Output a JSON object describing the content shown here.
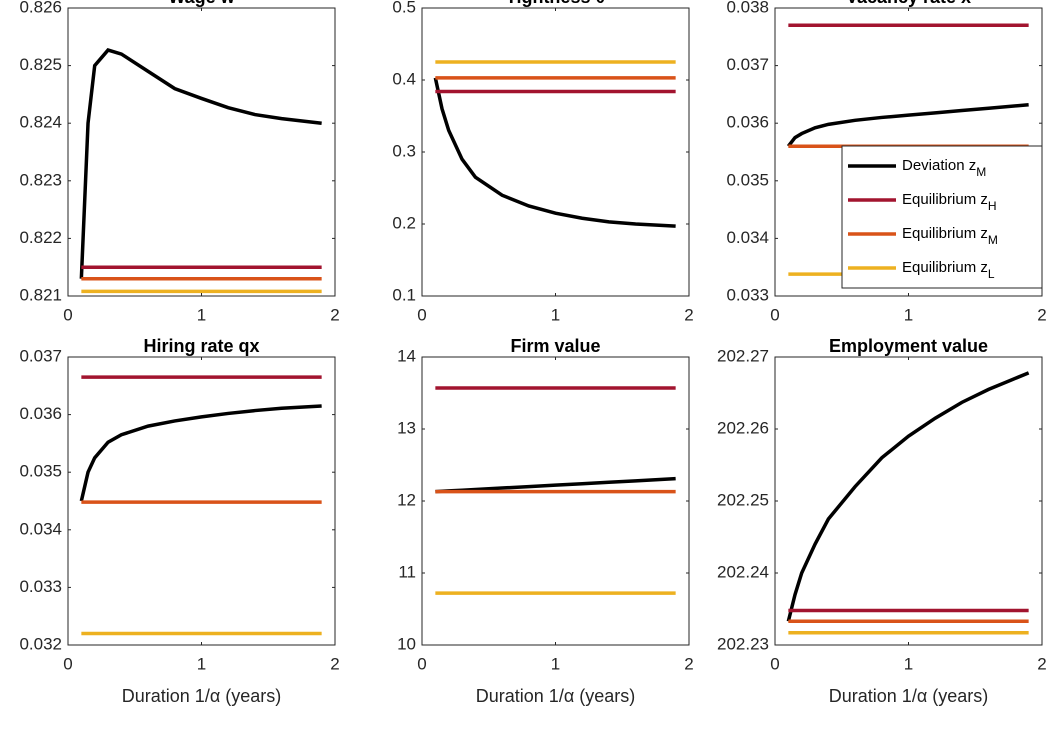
{
  "chart_data": [
    {
      "type": "line",
      "title": "Wage w",
      "x": [
        0.1,
        0.15,
        0.2,
        0.3,
        0.4,
        0.6,
        0.8,
        1.0,
        1.2,
        1.4,
        1.6,
        1.9
      ],
      "xlim": [
        0,
        2
      ],
      "xticks": [
        0,
        1,
        2
      ],
      "ylim": [
        0.821,
        0.826
      ],
      "yticks": [
        0.821,
        0.822,
        0.823,
        0.824,
        0.825,
        0.826
      ],
      "series": [
        {
          "name": "Deviation z_M",
          "color": "#000000",
          "values": [
            0.8213,
            0.824,
            0.825,
            0.82527,
            0.8252,
            0.8249,
            0.8246,
            0.82443,
            0.82427,
            0.82415,
            0.82408,
            0.824
          ]
        },
        {
          "name": "Equilibrium z_H",
          "color": "#a2142f",
          "values": [
            0.8215,
            0.8215,
            0.8215,
            0.8215,
            0.8215,
            0.8215,
            0.8215,
            0.8215,
            0.8215,
            0.8215,
            0.8215,
            0.8215
          ]
        },
        {
          "name": "Equilibrium z_M",
          "color": "#d95319",
          "values": [
            0.8213,
            0.8213,
            0.8213,
            0.8213,
            0.8213,
            0.8213,
            0.8213,
            0.8213,
            0.8213,
            0.8213,
            0.8213,
            0.8213
          ]
        },
        {
          "name": "Equilibrium z_L",
          "color": "#edb120",
          "values": [
            0.82108,
            0.82108,
            0.82108,
            0.82108,
            0.82108,
            0.82108,
            0.82108,
            0.82108,
            0.82108,
            0.82108,
            0.82108,
            0.82108
          ]
        }
      ]
    },
    {
      "type": "line",
      "title": "Tightness θ",
      "x": [
        0.1,
        0.15,
        0.2,
        0.3,
        0.4,
        0.6,
        0.8,
        1.0,
        1.2,
        1.4,
        1.6,
        1.9
      ],
      "xlim": [
        0,
        2
      ],
      "xticks": [
        0,
        1,
        2
      ],
      "ylim": [
        0.1,
        0.5
      ],
      "yticks": [
        0.1,
        0.2,
        0.3,
        0.4,
        0.5
      ],
      "series": [
        {
          "name": "Deviation z_M",
          "color": "#000000",
          "values": [
            0.403,
            0.36,
            0.33,
            0.29,
            0.265,
            0.24,
            0.225,
            0.215,
            0.208,
            0.203,
            0.2,
            0.197
          ]
        },
        {
          "name": "Equilibrium z_H",
          "color": "#a2142f",
          "values": [
            0.384,
            0.384,
            0.384,
            0.384,
            0.384,
            0.384,
            0.384,
            0.384,
            0.384,
            0.384,
            0.384,
            0.384
          ]
        },
        {
          "name": "Equilibrium z_M",
          "color": "#d95319",
          "values": [
            0.403,
            0.403,
            0.403,
            0.403,
            0.403,
            0.403,
            0.403,
            0.403,
            0.403,
            0.403,
            0.403,
            0.403
          ]
        },
        {
          "name": "Equilibrium z_L",
          "color": "#edb120",
          "values": [
            0.425,
            0.425,
            0.425,
            0.425,
            0.425,
            0.425,
            0.425,
            0.425,
            0.425,
            0.425,
            0.425,
            0.425
          ]
        }
      ]
    },
    {
      "type": "line",
      "title": "Vacancy rate x",
      "x": [
        0.1,
        0.15,
        0.2,
        0.3,
        0.4,
        0.6,
        0.8,
        1.0,
        1.2,
        1.4,
        1.6,
        1.9
      ],
      "xlim": [
        0,
        2
      ],
      "xticks": [
        0,
        1,
        2
      ],
      "ylim": [
        0.033,
        0.038
      ],
      "yticks": [
        0.033,
        0.034,
        0.035,
        0.036,
        0.037,
        0.038
      ],
      "legend": "right",
      "series": [
        {
          "name": "Deviation z_M",
          "color": "#000000",
          "values": [
            0.0356,
            0.03575,
            0.03582,
            0.03592,
            0.03598,
            0.03605,
            0.0361,
            0.03614,
            0.03618,
            0.03622,
            0.03626,
            0.03632
          ]
        },
        {
          "name": "Equilibrium z_H",
          "color": "#a2142f",
          "values": [
            0.0377,
            0.0377,
            0.0377,
            0.0377,
            0.0377,
            0.0377,
            0.0377,
            0.0377,
            0.0377,
            0.0377,
            0.0377,
            0.0377
          ]
        },
        {
          "name": "Equilibrium z_M",
          "color": "#d95319",
          "values": [
            0.0356,
            0.0356,
            0.0356,
            0.0356,
            0.0356,
            0.0356,
            0.0356,
            0.0356,
            0.0356,
            0.0356,
            0.0356,
            0.0356
          ]
        },
        {
          "name": "Equilibrium z_L",
          "color": "#edb120",
          "values": [
            0.03338,
            0.03338,
            0.03338,
            0.03338,
            0.03338,
            0.03338,
            0.03338,
            0.03338,
            0.03338,
            0.03338,
            0.03338,
            0.03338
          ]
        }
      ]
    },
    {
      "type": "line",
      "title": "Hiring rate qx",
      "xlabel": "Duration 1/α (years)",
      "x": [
        0.1,
        0.15,
        0.2,
        0.3,
        0.4,
        0.6,
        0.8,
        1.0,
        1.2,
        1.4,
        1.6,
        1.9
      ],
      "xlim": [
        0,
        2
      ],
      "xticks": [
        0,
        1,
        2
      ],
      "ylim": [
        0.032,
        0.037
      ],
      "yticks": [
        0.032,
        0.033,
        0.034,
        0.035,
        0.036,
        0.037
      ],
      "series": [
        {
          "name": "Deviation z_M",
          "color": "#000000",
          "values": [
            0.0345,
            0.035,
            0.03525,
            0.03552,
            0.03565,
            0.0358,
            0.03589,
            0.03596,
            0.03602,
            0.03607,
            0.03611,
            0.03615
          ]
        },
        {
          "name": "Equilibrium z_H",
          "color": "#a2142f",
          "values": [
            0.03665,
            0.03665,
            0.03665,
            0.03665,
            0.03665,
            0.03665,
            0.03665,
            0.03665,
            0.03665,
            0.03665,
            0.03665,
            0.03665
          ]
        },
        {
          "name": "Equilibrium z_M",
          "color": "#d95319",
          "values": [
            0.03448,
            0.03448,
            0.03448,
            0.03448,
            0.03448,
            0.03448,
            0.03448,
            0.03448,
            0.03448,
            0.03448,
            0.03448,
            0.03448
          ]
        },
        {
          "name": "Equilibrium z_L",
          "color": "#edb120",
          "values": [
            0.0322,
            0.0322,
            0.0322,
            0.0322,
            0.0322,
            0.0322,
            0.0322,
            0.0322,
            0.0322,
            0.0322,
            0.0322,
            0.0322
          ]
        }
      ]
    },
    {
      "type": "line",
      "title": "Firm value",
      "xlabel": "Duration 1/α (years)",
      "x": [
        0.1,
        0.15,
        0.2,
        0.3,
        0.4,
        0.6,
        0.8,
        1.0,
        1.2,
        1.4,
        1.6,
        1.9
      ],
      "xlim": [
        0,
        2
      ],
      "xticks": [
        0,
        1,
        2
      ],
      "ylim": [
        10,
        14
      ],
      "yticks": [
        10,
        11,
        12,
        13,
        14
      ],
      "series": [
        {
          "name": "Deviation z_M",
          "color": "#000000",
          "values": [
            12.13,
            12.135,
            12.14,
            12.15,
            12.16,
            12.18,
            12.2,
            12.22,
            12.24,
            12.26,
            12.28,
            12.31
          ]
        },
        {
          "name": "Equilibrium z_H",
          "color": "#a2142f",
          "values": [
            13.57,
            13.57,
            13.57,
            13.57,
            13.57,
            13.57,
            13.57,
            13.57,
            13.57,
            13.57,
            13.57,
            13.57
          ]
        },
        {
          "name": "Equilibrium z_M",
          "color": "#d95319",
          "values": [
            12.13,
            12.13,
            12.13,
            12.13,
            12.13,
            12.13,
            12.13,
            12.13,
            12.13,
            12.13,
            12.13,
            12.13
          ]
        },
        {
          "name": "Equilibrium z_L",
          "color": "#edb120",
          "values": [
            10.72,
            10.72,
            10.72,
            10.72,
            10.72,
            10.72,
            10.72,
            10.72,
            10.72,
            10.72,
            10.72,
            10.72
          ]
        }
      ]
    },
    {
      "type": "line",
      "title": "Employment value",
      "xlabel": "Duration 1/α (years)",
      "x": [
        0.1,
        0.15,
        0.2,
        0.3,
        0.4,
        0.6,
        0.8,
        1.0,
        1.2,
        1.4,
        1.6,
        1.9
      ],
      "xlim": [
        0,
        2
      ],
      "xticks": [
        0,
        1,
        2
      ],
      "ylim": [
        202.23,
        202.27
      ],
      "yticks": [
        202.23,
        202.24,
        202.25,
        202.26,
        202.27
      ],
      "series": [
        {
          "name": "Deviation z_M",
          "color": "#000000",
          "values": [
            202.2333,
            202.237,
            202.24,
            202.244,
            202.2475,
            202.252,
            202.256,
            202.259,
            202.2615,
            202.2637,
            202.2655,
            202.2678
          ]
        },
        {
          "name": "Equilibrium z_H",
          "color": "#a2142f",
          "values": [
            202.2348,
            202.2348,
            202.2348,
            202.2348,
            202.2348,
            202.2348,
            202.2348,
            202.2348,
            202.2348,
            202.2348,
            202.2348,
            202.2348
          ]
        },
        {
          "name": "Equilibrium z_M",
          "color": "#d95319",
          "values": [
            202.2333,
            202.2333,
            202.2333,
            202.2333,
            202.2333,
            202.2333,
            202.2333,
            202.2333,
            202.2333,
            202.2333,
            202.2333,
            202.2333
          ]
        },
        {
          "name": "Equilibrium z_L",
          "color": "#edb120",
          "values": [
            202.2317,
            202.2317,
            202.2317,
            202.2317,
            202.2317,
            202.2317,
            202.2317,
            202.2317,
            202.2317,
            202.2317,
            202.2317,
            202.2317
          ]
        }
      ]
    }
  ]
}
